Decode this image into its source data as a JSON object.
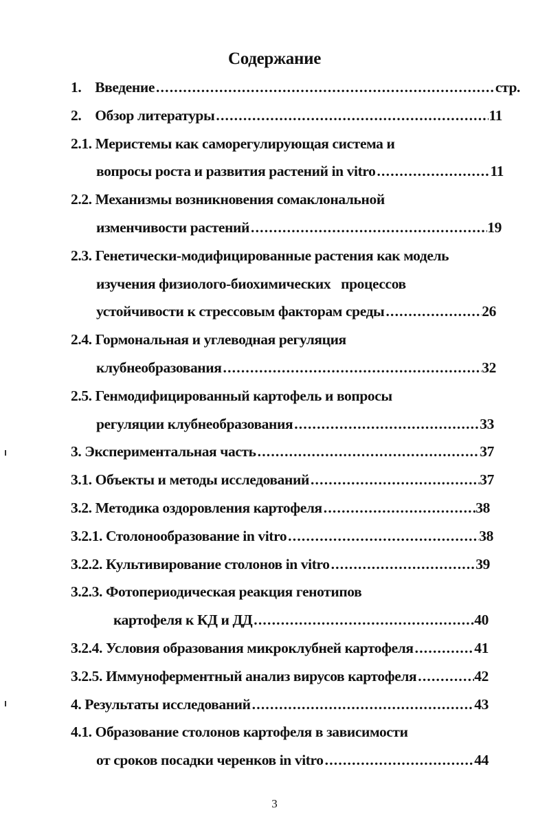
{
  "title": "Содержание",
  "entries": [
    {
      "label": "1.    Введение",
      "page": "стр."
    },
    {
      "label": "2.    Обзор литературы",
      "page": "11"
    },
    {
      "label": "2.1. Меристемы как саморегулирующая система и",
      "page": null
    },
    {
      "label": "вопросы роста и развития растений in vitro",
      "page": "11"
    },
    {
      "label": "2.2. Механизмы возникновения сомаклональной",
      "page": null
    },
    {
      "label": "изменчивости растений",
      "page": "19"
    },
    {
      "label": "2.3. Генетически-модифицированные растения как модель",
      "page": null
    },
    {
      "label": "изучения физиолого-биохимических   процессов",
      "page": null
    },
    {
      "label": "устойчивости к стрессовым факторам среды",
      "page": "26"
    },
    {
      "label": "2.4. Гормональная и углеводная регуляция",
      "page": null
    },
    {
      "label": "клубнеобразования",
      "page": "32"
    },
    {
      "label": "2.5. Генмодифицированный картофель и вопросы",
      "page": null
    },
    {
      "label": "регуляции клубнеобразования",
      "page": "33"
    },
    {
      "label": "3. Экспериментальная часть",
      "page": "37"
    },
    {
      "label": "3.1. Объекты и методы исследований",
      "page": "37"
    },
    {
      "label": "3.2. Методика оздоровления картофеля",
      "page": "38"
    },
    {
      "label": "3.2.1. Столонообразование in vitro",
      "page": "38"
    },
    {
      "label": "3.2.2. Культивирование столонов in vitro",
      "page": "39"
    },
    {
      "label": "3.2.3. Фотопериодическая реакция генотипов",
      "page": null
    },
    {
      "label": "картофеля к КД и ДД",
      "page": "40"
    },
    {
      "label": "3.2.4. Условия образования микроклубней картофеля",
      "page": "41"
    },
    {
      "label": "3.2.5. Иммуноферментный анализ вирусов картофеля",
      "page": "42"
    },
    {
      "label": "4. Результаты исследований",
      "page": "43"
    },
    {
      "label": "4.1. Образование столонов картофеля в зависимости",
      "page": null
    },
    {
      "label": "от сроков посадки черенков in vitro",
      "page": "44"
    }
  ],
  "page_number": "3"
}
